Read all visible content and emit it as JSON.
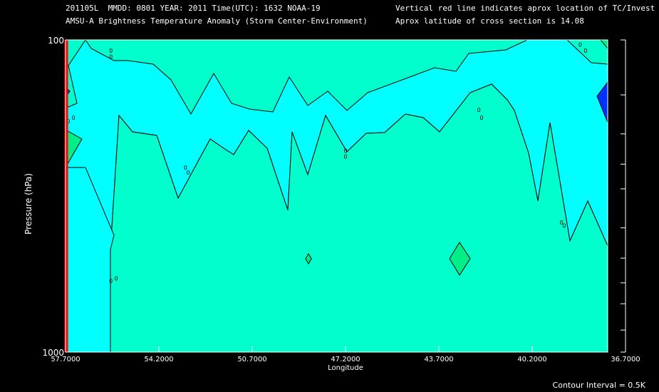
{
  "header": {
    "line1_left": "201105L  MMDD: 0801 YEAR: 2011 Time(UTC): 1632 NOAA-19",
    "line2_left": "AMSU-A Brightness Temperature Anomaly (Storm Center-Environment)",
    "line1_right": "Vertical red line indicates aprox location of TC/Invest",
    "line2_right": "Aprox latitude of cross section is 14.08"
  },
  "footer": {
    "contour_interval": "Contour Interval = 0.5K"
  },
  "colors": {
    "background": "#000000",
    "base_fill": "#00ffcc",
    "cool_fill": "#00ffff",
    "warm_fill": "#00ee88",
    "cold_fill": "#0033ff",
    "tc_line": "#ff0000",
    "axis": "#ffffff",
    "contour": "#000000"
  },
  "chart_data": {
    "type": "contour",
    "xlabel": "Longitude",
    "ylabel": "Pressure (hPa)",
    "x_ticks": [
      "57.7000",
      "54.2000",
      "50.7000",
      "47.2000",
      "43.7000",
      "40.2000",
      "36.7000"
    ],
    "x_tick_values": [
      57.7,
      54.2,
      50.7,
      47.2,
      43.7,
      40.2,
      36.7
    ],
    "xlim": [
      57.7,
      36.7
    ],
    "y_ticks_labeled": [
      "100",
      "1000"
    ],
    "y_tick_values": [
      100,
      150,
      200,
      250,
      300,
      400,
      500,
      600,
      700,
      850,
      1000
    ],
    "ylim": [
      100,
      1000
    ],
    "y_scale": "log-pressure",
    "tc_longitude": 57.7,
    "contour_labels": [
      {
        "text": "0",
        "lon": 56.0,
        "p": 110
      },
      {
        "text": "0",
        "lon": 56.0,
        "p": 115
      },
      {
        "text": "0",
        "lon": 57.4,
        "p": 180
      },
      {
        "text": "0",
        "lon": 57.6,
        "p": 185
      },
      {
        "text": "0",
        "lon": 53.2,
        "p": 260
      },
      {
        "text": "0",
        "lon": 53.1,
        "p": 270
      },
      {
        "text": "0",
        "lon": 56.0,
        "p": 600
      },
      {
        "text": "0",
        "lon": 55.8,
        "p": 590
      },
      {
        "text": "0",
        "lon": 47.2,
        "p": 230
      },
      {
        "text": "0",
        "lon": 47.2,
        "p": 240
      },
      {
        "text": "0",
        "lon": 42.2,
        "p": 170
      },
      {
        "text": "0",
        "lon": 42.1,
        "p": 180
      },
      {
        "text": "0",
        "lon": 39.1,
        "p": 390
      },
      {
        "text": "0",
        "lon": 39.0,
        "p": 400
      },
      {
        "text": "0",
        "lon": 38.4,
        "p": 105
      },
      {
        "text": "0",
        "lon": 38.2,
        "p": 110
      }
    ]
  }
}
